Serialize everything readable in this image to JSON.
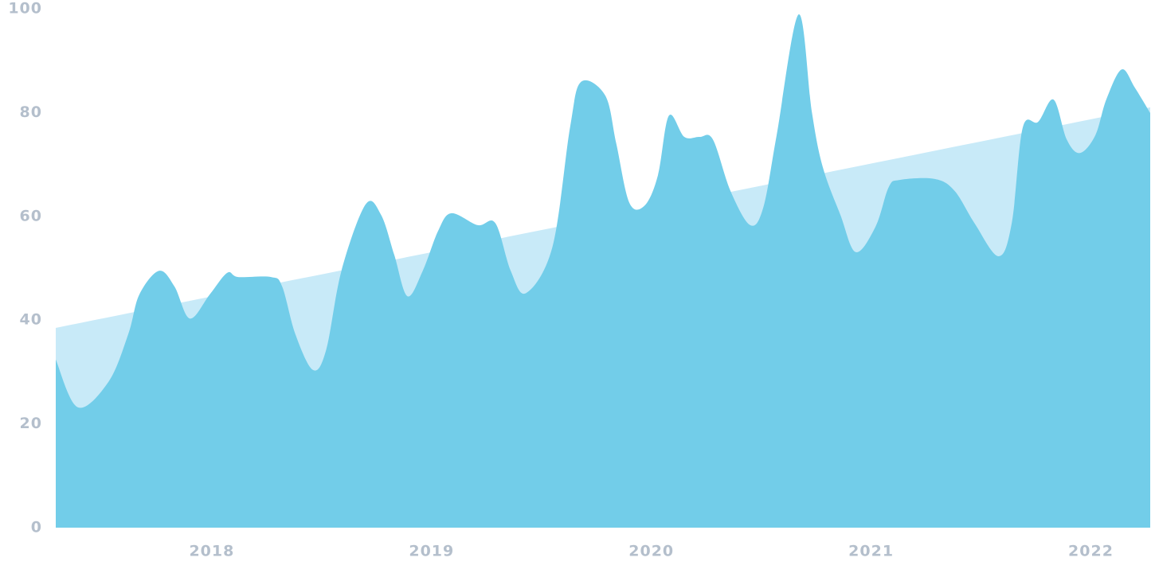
{
  "chart_data": {
    "type": "area",
    "xlim": [
      2017.29,
      2022.27
    ],
    "xticks": [
      2018,
      2019,
      2020,
      2021,
      2022
    ],
    "ylim": [
      0,
      100
    ],
    "yticks": [
      0,
      20,
      40,
      60,
      80,
      100
    ],
    "series": [
      {
        "color": "#c8eaf8",
        "x": [
          2017.29,
          2022.27
        ],
        "values": [
          38.5,
          81.0
        ]
      },
      {
        "color": "#72cde9",
        "x": [
          2017.29,
          2017.39,
          2017.53,
          2017.62,
          2017.67,
          2017.76,
          2017.83,
          2017.9,
          2017.99,
          2018.07,
          2018.12,
          2018.27,
          2018.32,
          2018.38,
          2018.46,
          2018.52,
          2018.59,
          2018.7,
          2018.77,
          2018.83,
          2018.89,
          2018.96,
          2019.03,
          2019.09,
          2019.21,
          2019.29,
          2019.36,
          2019.43,
          2019.55,
          2019.63,
          2019.68,
          2019.79,
          2019.84,
          2019.9,
          2019.97,
          2020.03,
          2020.08,
          2020.15,
          2020.22,
          2020.28,
          2020.36,
          2020.45,
          2020.51,
          2020.57,
          2020.67,
          2020.73,
          2020.78,
          2020.86,
          2020.93,
          2021.02,
          2021.08,
          2021.13,
          2021.29,
          2021.38,
          2021.47,
          2021.58,
          2021.64,
          2021.69,
          2021.76,
          2021.83,
          2021.89,
          2021.95,
          2022.02,
          2022.07,
          2022.14,
          2022.2,
          2022.27
        ],
        "values": [
          32.4,
          23.2,
          28.1,
          37.3,
          44.9,
          49.5,
          46.5,
          40.3,
          44.9,
          49.1,
          48.3,
          48.3,
          46.5,
          37.3,
          30.4,
          34.2,
          49.5,
          62.3,
          60.3,
          52.6,
          44.6,
          49.5,
          57.2,
          60.6,
          58.3,
          58.7,
          49.5,
          45.2,
          54.1,
          77.1,
          85.9,
          83.3,
          74.1,
          62.6,
          62.1,
          67.9,
          79.4,
          75.3,
          75.3,
          74.8,
          64.9,
          58.3,
          61.8,
          75.6,
          98.9,
          80.2,
          69.5,
          60.3,
          53.1,
          58.0,
          65.6,
          67.0,
          67.2,
          64.9,
          58.7,
          52.3,
          58.7,
          77.1,
          78.2,
          82.5,
          74.8,
          72.2,
          75.6,
          82.5,
          88.3,
          84.8,
          79.9
        ]
      }
    ]
  }
}
